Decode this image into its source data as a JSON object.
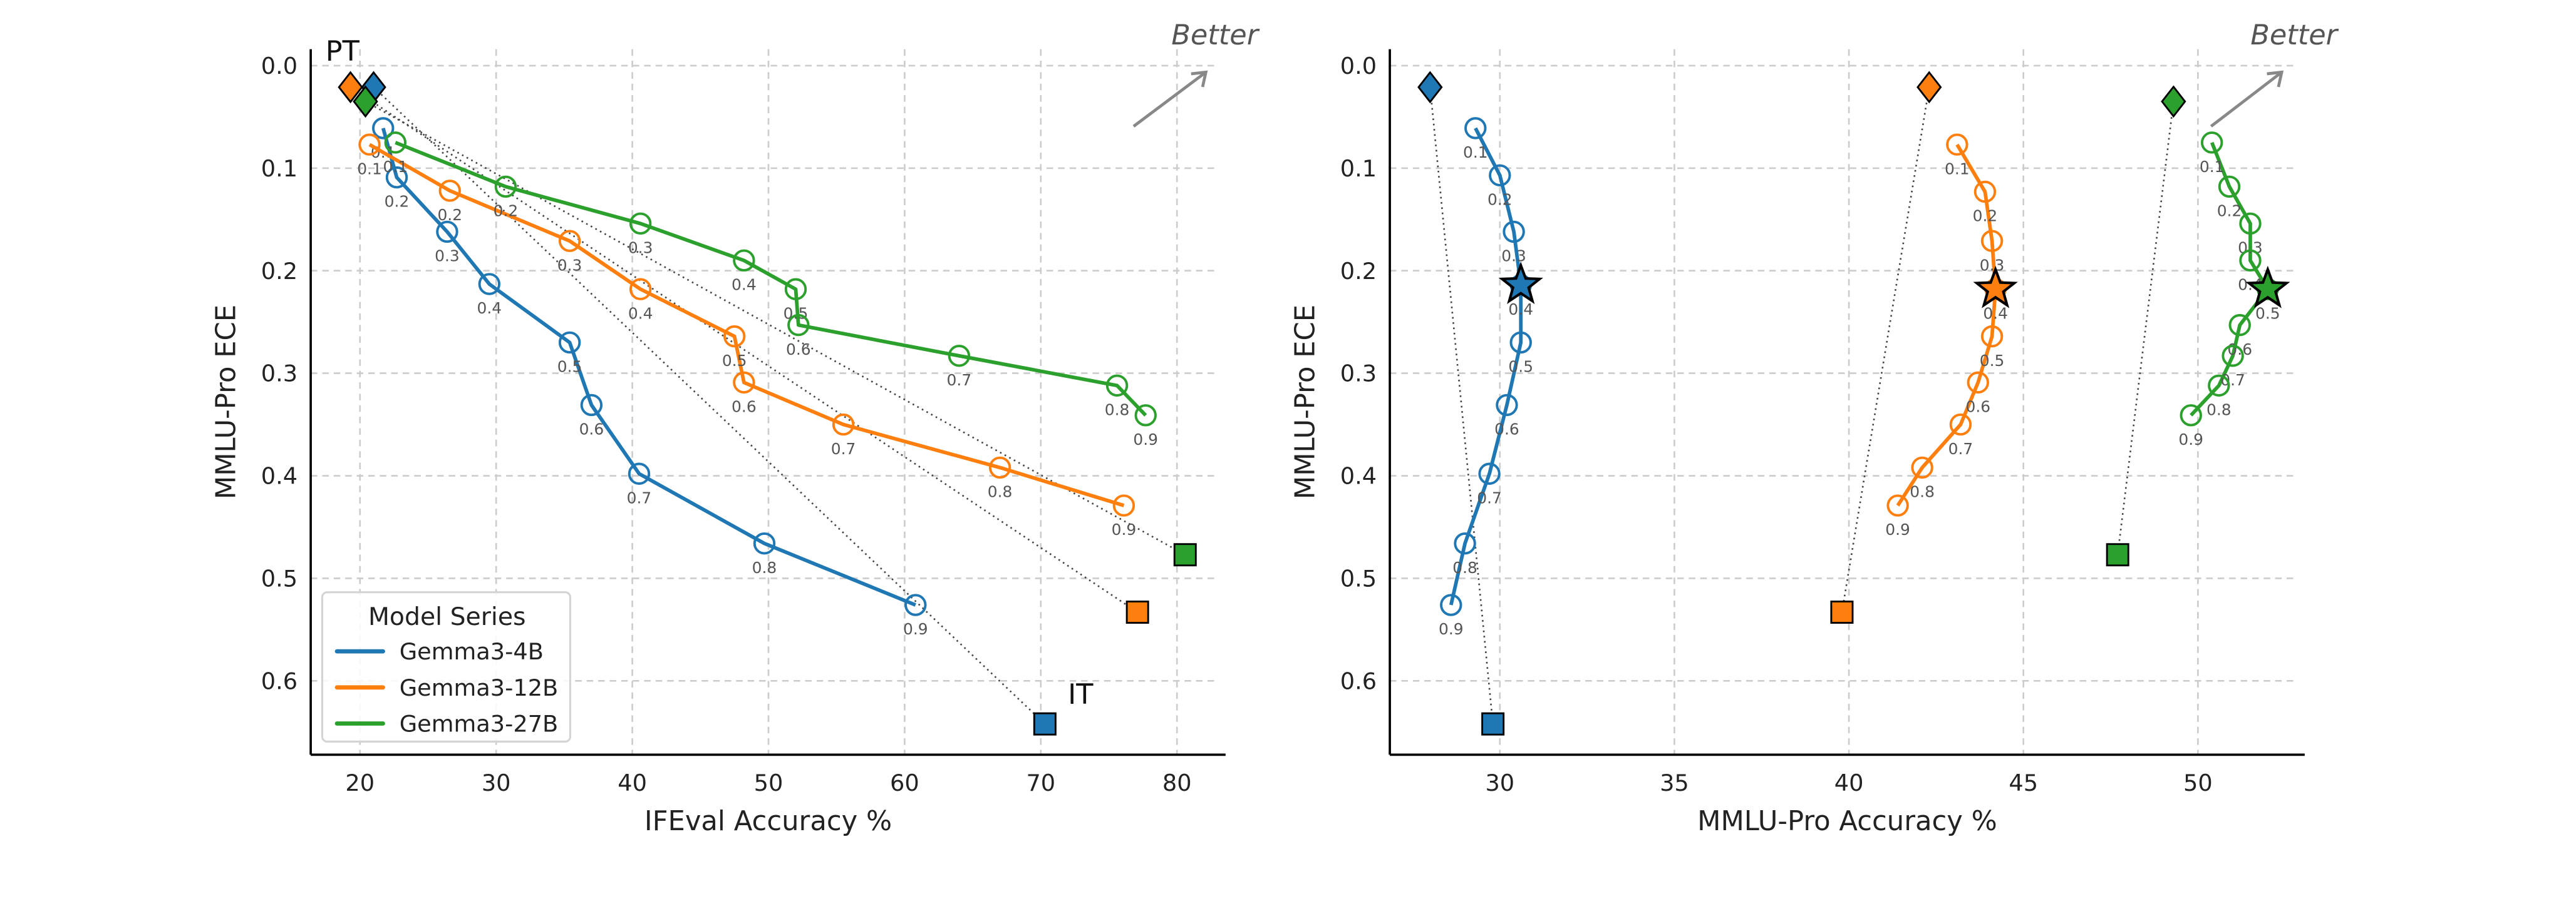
{
  "colors": {
    "Gemma3-4B": "#1f77b4",
    "Gemma3-12B": "#ff7f0e",
    "Gemma3-27B": "#2ca02c",
    "grid": "#cccccc",
    "arrow": "#888888"
  },
  "legend": {
    "title": "Model Series",
    "entries": [
      "Gemma3-4B",
      "Gemma3-12B",
      "Gemma3-27B"
    ]
  },
  "chart_data": [
    {
      "type": "line",
      "title": "",
      "xlabel": "IFEval Accuracy %",
      "ylabel": "MMLU-Pro ECE",
      "xlim": [
        16.5,
        84
      ],
      "ylim": [
        0.67,
        0.0
      ],
      "y_inverted": true,
      "xticks": [
        "20",
        "30",
        "40",
        "50",
        "60",
        "70",
        "80"
      ],
      "yticks": [
        "0.0",
        "0.1",
        "0.2",
        "0.3",
        "0.4",
        "0.5",
        "0.6"
      ],
      "grid": true,
      "legend_position": "bottom-left",
      "annotations": {
        "pt_label": "PT",
        "it_label": "IT",
        "better_label": "Better"
      },
      "series": [
        {
          "name": "Gemma3-4B",
          "point_labels": [
            "0.1",
            "0.2",
            "0.3",
            "0.4",
            "0.5",
            "0.6",
            "0.7",
            "0.8",
            "0.9"
          ],
          "x": [
            21.7,
            22.7,
            26.4,
            29.5,
            35.4,
            37.0,
            40.5,
            49.7,
            60.8
          ],
          "y": [
            0.061,
            0.109,
            0.162,
            0.213,
            0.27,
            0.331,
            0.398,
            0.466,
            0.526
          ],
          "pt": {
            "x": 21.0,
            "y": 0.021
          },
          "it": {
            "x": 70.3,
            "y": 0.642
          }
        },
        {
          "name": "Gemma3-12B",
          "point_labels": [
            "0.1",
            "0.2",
            "0.3",
            "0.4",
            "0.5",
            "0.6",
            "0.7",
            "0.8",
            "0.9"
          ],
          "x": [
            20.7,
            26.6,
            35.4,
            40.6,
            47.5,
            48.2,
            55.5,
            67.0,
            76.1
          ],
          "y": [
            0.077,
            0.122,
            0.171,
            0.218,
            0.264,
            0.309,
            0.35,
            0.392,
            0.429
          ],
          "pt": {
            "x": 19.3,
            "y": 0.021
          },
          "it": {
            "x": 77.1,
            "y": 0.533
          }
        },
        {
          "name": "Gemma3-27B",
          "point_labels": [
            "0.1",
            "0.2",
            "0.3",
            "0.4",
            "0.5",
            "0.6",
            "0.7",
            "0.8",
            "0.9"
          ],
          "x": [
            22.6,
            30.7,
            40.6,
            48.2,
            52.0,
            52.2,
            64.0,
            75.6,
            77.7
          ],
          "y": [
            0.075,
            0.118,
            0.154,
            0.19,
            0.218,
            0.253,
            0.283,
            0.312,
            0.341
          ],
          "pt": {
            "x": 20.4,
            "y": 0.035
          },
          "it": {
            "x": 80.6,
            "y": 0.477
          }
        }
      ]
    },
    {
      "type": "line",
      "title": "",
      "xlabel": "MMLU-Pro Accuracy %",
      "ylabel": "MMLU-Pro ECE",
      "xlim": [
        26.85,
        53.05
      ],
      "ylim": [
        0.67,
        0.0
      ],
      "y_inverted": true,
      "xticks": [
        "30",
        "35",
        "40",
        "45",
        "50"
      ],
      "yticks": [
        "0.0",
        "0.1",
        "0.2",
        "0.3",
        "0.4",
        "0.5",
        "0.6"
      ],
      "grid": true,
      "annotations": {
        "better_label": "Better"
      },
      "series": [
        {
          "name": "Gemma3-4B",
          "point_labels": [
            "0.1",
            "0.2",
            "0.3",
            "0.4",
            "0.5",
            "0.6",
            "0.7",
            "0.8",
            "0.9"
          ],
          "x": [
            29.3,
            30.0,
            30.4,
            30.6,
            30.6,
            30.2,
            29.7,
            29.0,
            28.6
          ],
          "y": [
            0.061,
            0.107,
            0.162,
            0.214,
            0.27,
            0.331,
            0.398,
            0.466,
            0.526
          ],
          "star_index": 3,
          "pt": {
            "x": 28.0,
            "y": 0.021
          },
          "it": {
            "x": 29.8,
            "y": 0.642
          }
        },
        {
          "name": "Gemma3-12B",
          "point_labels": [
            "0.1",
            "0.2",
            "0.3",
            "0.4",
            "0.5",
            "0.6",
            "0.7",
            "0.8",
            "0.9"
          ],
          "x": [
            43.1,
            43.9,
            44.1,
            44.2,
            44.1,
            43.7,
            43.2,
            42.1,
            41.4
          ],
          "y": [
            0.077,
            0.123,
            0.171,
            0.218,
            0.264,
            0.309,
            0.35,
            0.392,
            0.429
          ],
          "star_index": 3,
          "pt": {
            "x": 42.3,
            "y": 0.021
          },
          "it": {
            "x": 39.8,
            "y": 0.533
          }
        },
        {
          "name": "Gemma3-27B",
          "point_labels": [
            "0.1",
            "0.2",
            "0.3",
            "0.4",
            "0.5",
            "0.6",
            "0.7",
            "0.8",
            "0.9"
          ],
          "x": [
            50.4,
            50.9,
            51.5,
            51.5,
            52.0,
            51.2,
            51.0,
            50.6,
            49.8
          ],
          "y": [
            0.075,
            0.118,
            0.154,
            0.19,
            0.218,
            0.253,
            0.283,
            0.312,
            0.341
          ],
          "star_index": 4,
          "pt": {
            "x": 49.3,
            "y": 0.035
          },
          "it": {
            "x": 47.7,
            "y": 0.477
          }
        }
      ]
    }
  ]
}
